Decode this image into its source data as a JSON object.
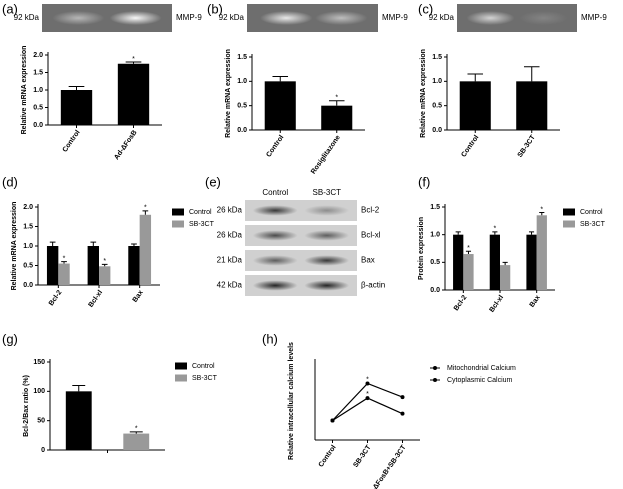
{
  "chart_data": [
    {
      "type": "bar",
      "panel": "(a)",
      "ylabel": "Relative mRNA expression",
      "categories": [
        "Control",
        "Ad-ΔFosB"
      ],
      "values": [
        1.0,
        1.75
      ],
      "errors": [
        0.1,
        0.05
      ],
      "labels": [
        null,
        "*"
      ],
      "color": "#000000",
      "ylim": [
        0,
        2
      ],
      "yticks": [
        {
          "value": 0,
          "label": "0.0"
        },
        {
          "value": 0.5,
          "label": "0.5"
        },
        {
          "value": 1,
          "label": "1.0"
        },
        {
          "value": 1.5,
          "label": "1.5"
        },
        {
          "value": 2,
          "label": "2.0"
        }
      ]
    },
    {
      "type": "bar",
      "panel": "(b)",
      "ylabel": "Relative mRNA expression",
      "categories": [
        "Control",
        "Rosiglitazone"
      ],
      "values": [
        1.0,
        0.5
      ],
      "errors": [
        0.1,
        0.1
      ],
      "labels": [
        null,
        "*"
      ],
      "color": "#000000",
      "ylim": [
        0,
        1.5
      ],
      "yticks": [
        {
          "value": 0,
          "label": "0.0"
        },
        {
          "value": 0.5,
          "label": "0.5"
        },
        {
          "value": 1,
          "label": "1.0"
        },
        {
          "value": 1.5,
          "label": "1.5"
        }
      ]
    },
    {
      "type": "bar",
      "panel": "(c)",
      "ylabel": "Relative mRNA expression",
      "categories": [
        "Control",
        "SB-3CT"
      ],
      "values": [
        1.0,
        1.0
      ],
      "errors": [
        0.15,
        0.3
      ],
      "color": "#000000",
      "ylim": [
        0,
        1.5
      ],
      "yticks": [
        {
          "value": 0,
          "label": "0.0"
        },
        {
          "value": 0.5,
          "label": "0.5"
        },
        {
          "value": 1,
          "label": "1.0"
        },
        {
          "value": 1.5,
          "label": "1.5"
        }
      ]
    },
    {
      "type": "bar",
      "panel": "(d)",
      "ylabel": "Relative mRNA expression",
      "categories": [
        "Bcl-2",
        "Bcl-xl",
        "Bax"
      ],
      "series": [
        {
          "name": "Control",
          "color": "#000000",
          "values": [
            1.0,
            1.0,
            1.0
          ],
          "errors": [
            0.1,
            0.1,
            0.05
          ]
        },
        {
          "name": "SB-3CT",
          "color": "#999999",
          "values": [
            0.55,
            0.48,
            1.8
          ],
          "errors": [
            0.05,
            0.05,
            0.1
          ],
          "labels": [
            "*",
            "*",
            "*"
          ]
        }
      ],
      "ylim": [
        0,
        2
      ],
      "yticks": [
        {
          "value": 0,
          "label": "0.0"
        },
        {
          "value": 0.5,
          "label": "0.5"
        },
        {
          "value": 1,
          "label": "1.0"
        },
        {
          "value": 1.5,
          "label": "1.5"
        },
        {
          "value": 2,
          "label": "2.0"
        }
      ]
    },
    {
      "type": "bar",
      "panel": "(f)",
      "ylabel": "Protein expression",
      "categories": [
        "Bcl-2",
        "Bcl-xl",
        "Bax"
      ],
      "series": [
        {
          "name": "Control",
          "color": "#000000",
          "values": [
            1.0,
            1.0,
            1.0
          ],
          "errors": [
            0.05,
            0.05,
            0.05
          ],
          "labels": [
            null,
            "*",
            null
          ]
        },
        {
          "name": "SB-3CT",
          "color": "#999999",
          "values": [
            0.65,
            0.45,
            1.35
          ],
          "errors": [
            0.05,
            0.05,
            0.05
          ],
          "labels": [
            "*",
            null,
            "*"
          ]
        }
      ],
      "ylim": [
        0,
        1.5
      ],
      "yticks": [
        {
          "value": 0,
          "label": "0.0"
        },
        {
          "value": 0.5,
          "label": "0.5"
        },
        {
          "value": 1,
          "label": "1.0"
        },
        {
          "value": 1.5,
          "label": "1.5"
        }
      ]
    },
    {
      "type": "bar",
      "panel": "(g)",
      "ylabel": "Bcl-2/Bax ratio (%)",
      "categories": [
        null
      ],
      "series": [
        {
          "name": "Control",
          "color": "#000000",
          "values": [
            100
          ],
          "errors": [
            10
          ]
        },
        {
          "name": "SB-3CT",
          "color": "#999999",
          "values": [
            28
          ],
          "errors": [
            3
          ],
          "labels": [
            "*"
          ]
        }
      ],
      "ylim": [
        0,
        150
      ],
      "yticks": [
        0,
        50,
        100,
        150
      ]
    },
    {
      "type": "line",
      "panel": "(h)",
      "ylabel": "Relative intracellular calcium levels",
      "categories": [
        "Control",
        "SB-3CT",
        "Ad-ΔFosB+SB-3CT"
      ],
      "series": [
        {
          "name": "Mitochondrial Calcium",
          "color": "#000000",
          "values": [
            1.0,
            2.9,
            2.2
          ],
          "labels": [
            null,
            "*",
            null
          ]
        },
        {
          "name": "Cytoplasmic Calcium",
          "color": "#000000",
          "values": [
            1.0,
            2.15,
            1.35
          ],
          "labels": [
            null,
            "*",
            null
          ]
        }
      ],
      "ylim": [
        0,
        4
      ]
    }
  ],
  "blots": [
    {
      "rows": [
        {
          "size": "92 kDa",
          "label": "MMP-9"
        }
      ]
    },
    {
      "rows": [
        {
          "size": "92 kDa",
          "label": "MMP-9"
        }
      ]
    },
    {
      "rows": [
        {
          "size": "92 kDa",
          "label": "MMP-9"
        }
      ]
    },
    {
      "panel": "(e)",
      "columns": [
        "Control",
        "SB-3CT"
      ],
      "rows": [
        {
          "size": "26 kDa",
          "label": "Bcl-2"
        },
        {
          "size": "26 kDa",
          "label": "Bcl-xl"
        },
        {
          "size": "21 kDa",
          "label": "Bax"
        },
        {
          "size": "42 kDa",
          "label": "β-actin"
        }
      ]
    }
  ]
}
